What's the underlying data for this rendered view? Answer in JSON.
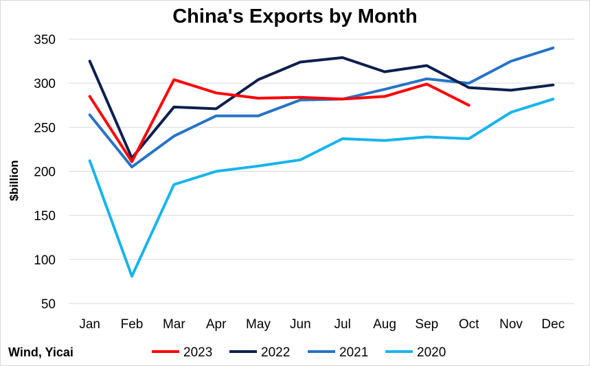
{
  "chart_data": {
    "type": "line",
    "title": "China's Exports by Month",
    "ylabel": "$billion",
    "xlabel": "",
    "source": "Wind, Yicai",
    "categories": [
      "Jan",
      "Feb",
      "Mar",
      "Apr",
      "May",
      "Jun",
      "Jul",
      "Aug",
      "Sep",
      "Oct",
      "Nov",
      "Dec"
    ],
    "ylim": [
      50,
      350
    ],
    "yticks": [
      50,
      100,
      150,
      200,
      250,
      300,
      350
    ],
    "grid": true,
    "legend_position": "bottom",
    "series": [
      {
        "name": "2023",
        "color": "#ff0000",
        "values": [
          285,
          211,
          304,
          289,
          283,
          284,
          282,
          285,
          299,
          275,
          null,
          null
        ]
      },
      {
        "name": "2022",
        "color": "#0d1f4f",
        "values": [
          325,
          215,
          273,
          271,
          304,
          324,
          329,
          313,
          320,
          295,
          292,
          298
        ]
      },
      {
        "name": "2021",
        "color": "#2673c6",
        "values": [
          264,
          205,
          240,
          263,
          263,
          281,
          282,
          293,
          305,
          300,
          325,
          340
        ]
      },
      {
        "name": "2020",
        "color": "#17b4ec",
        "values": [
          212,
          81,
          185,
          200,
          206,
          213,
          237,
          235,
          239,
          237,
          267,
          282
        ]
      }
    ]
  }
}
